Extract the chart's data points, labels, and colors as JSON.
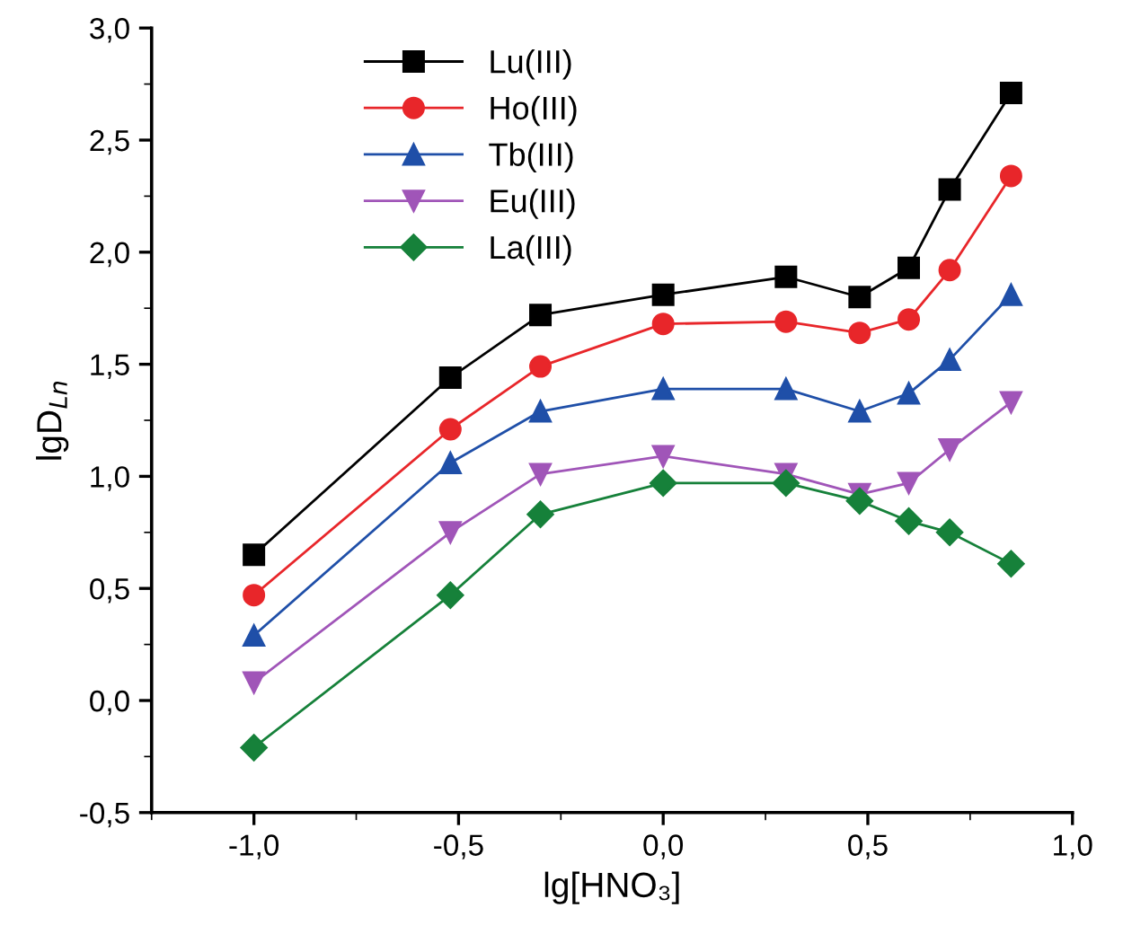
{
  "chart_data": {
    "type": "line",
    "xlabel": "lg[HNO₃]",
    "ylabel": "lgD$_{Ln}$",
    "x": [
      -1.0,
      -0.52,
      -0.3,
      0.0,
      0.3,
      0.48,
      0.6,
      0.7,
      0.85
    ],
    "series": [
      {
        "name": "Lu(III)",
        "color": "#000000",
        "marker": "square",
        "values": [
          0.65,
          1.44,
          1.72,
          1.81,
          1.89,
          1.8,
          1.93,
          2.28,
          2.71
        ]
      },
      {
        "name": "Ho(III)",
        "color": "#e8262a",
        "marker": "circle",
        "values": [
          0.47,
          1.21,
          1.49,
          1.68,
          1.69,
          1.64,
          1.7,
          1.92,
          2.34
        ]
      },
      {
        "name": "Tb(III)",
        "color": "#1f4fa8",
        "marker": "triangle",
        "values": [
          0.29,
          1.06,
          1.29,
          1.39,
          1.39,
          1.29,
          1.37,
          1.52,
          1.81
        ]
      },
      {
        "name": "Eu(III)",
        "color": "#a055b8",
        "marker": "triangle_down",
        "values": [
          0.08,
          0.75,
          1.01,
          1.09,
          1.01,
          0.92,
          0.97,
          1.12,
          1.33
        ]
      },
      {
        "name": "La(III)",
        "color": "#16813a",
        "marker": "diamond",
        "values": [
          -0.21,
          0.47,
          0.83,
          0.97,
          0.97,
          0.89,
          0.8,
          0.75,
          0.61
        ]
      }
    ],
    "xlim": [
      -1.25,
      1.0
    ],
    "xticks": [
      {
        "value": -1.0,
        "label": "-1,0"
      },
      {
        "value": -0.5,
        "label": "-0,5"
      },
      {
        "value": 0.0,
        "label": "0,0"
      },
      {
        "value": 0.5,
        "label": "0,5"
      },
      {
        "value": 1.0,
        "label": "1,0"
      }
    ],
    "ylim": [
      -0.5,
      3.0
    ],
    "yticks": [
      {
        "value": -0.5,
        "label": "-0,5"
      },
      {
        "value": 0.0,
        "label": "0,0"
      },
      {
        "value": 0.5,
        "label": "0,5"
      },
      {
        "value": 1.0,
        "label": "1,0"
      },
      {
        "value": 1.5,
        "label": "1,5"
      },
      {
        "value": 2.0,
        "label": "2,0"
      },
      {
        "value": 2.5,
        "label": "2,5"
      },
      {
        "value": 3.0,
        "label": "3,0"
      }
    ],
    "legend": "top left",
    "grid": false,
    "line_style": "solid"
  }
}
